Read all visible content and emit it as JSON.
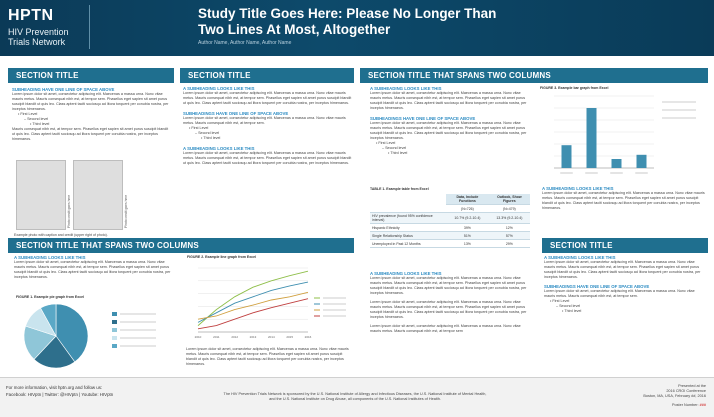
{
  "header": {
    "logo_main": "HPTN",
    "logo_sub_1": "HIV Prevention",
    "logo_sub_2": "Trials Network",
    "title_line_1": "Study Title Goes Here: Please No Longer Than",
    "title_line_2": "Two Lines At Most, Altogether",
    "authors": "Author Name, Author Name, Author Name"
  },
  "lorem": {
    "short": "Lorem ipsum dolor sit amet, consectetur adipiscing elit. Maecenas a massa urna. Nunc vitae mauris metus. Mauris consequat nibh est, at tempor sem. Phasellus eget sapien sit amet purus suscipit blandit ut quis leo. Class aptent taciti sociosqu ad litora torquent per conubia nostra, per inceptos himenaeos.",
    "tail": "Mauris consequat nibh est, at tempor sem. Phasellus eget sapien sit amet purus suscipit blandit ut quis leo. Class aptent taciti sociosqu ad litora torquent per conubia nostra, per inceptos himenaeos.",
    "mid": "Lorem ipsum dolor sit amet, consectetur adipiscing elit. Maecenas a massa urna. Nunc vitae mauris metus. Mauris consequat nibh est, at tempor sem.",
    "long_b": "Lorem ipsum dolor sit amet, consectetur adipiscing elit. Maecenas a massa urna. Nunc vitae mauris metus. Mauris consequat nibh est, at tempor sem. Phasellus eget sapien sit amet purus suscipit blandit ut quis leo. Class aptent taciti sociosqu ad litora torquent per conubia nostra, per inceptos himenaeos.",
    "final": "Lorem ipsum dolor sit amet, consectetur adipiscing elit. Maecenas a massa urna. Nunc vitae mauris metus. Mauris consequat nibh est, at tempor sem"
  },
  "bullets": {
    "l1": "First Level",
    "l2": "Second level",
    "l3": "Third level"
  },
  "sections": {
    "s1_title": "SECTION TITLE",
    "s1_sub": "SUBHEADING HAVE ONE LINE OF SPACE ABOVE",
    "photo_caption": "Example photo with caption and credit (upper right of photo).",
    "photo_credit": "Photo credit goes here",
    "s2_title": "SECTION TITLE",
    "s2_sub1": "A SUBHEADING LOOKS LIKE THIS",
    "s2_sub2": "SUBHEADINGS HAVE ONE LINE OF SPACE ABOVE",
    "s2_sub3": "A SUBHEADING LOOKS LIKE THIS",
    "s3_title": "SECTION TITLE THAT SPANS TWO COLUMNS",
    "s3_sub1": "A SUBHEADING LOOKS LIKE THIS",
    "s3_sub2": "SUBHEADINGS HAVE ONE LINE OF SPACE ABOVE",
    "s3_sub3": "A SUBHEADING LOOKS LIKE THIS",
    "s3_sub4": "A SUBHEADING LOOKS LIKE THIS",
    "s4_title": "SECTION TITLE THAT SPANS TWO COLUMNS",
    "s4_sub1": "A SUBHEADING LOOKS LIKE THIS",
    "s5_title": "SECTION TITLE",
    "s5_sub1": "A SUBHEADING LOOKS LIKE THIS",
    "s5_sub2": "SUBHEADINGS HAVE ONE LINE OF SPACE ABOVE"
  },
  "table": {
    "title": "TABLE 1. Example table from Excel",
    "col1": "Data, Include Functions",
    "col1_sub": "(N=726)",
    "col2": "Outlook, Show Figures",
    "col2_sub": "(N=479)",
    "rows": [
      {
        "label": "HIV prevalence (found 95% confidence interval)",
        "a": "10.7% (9.2-10.4)",
        "b": "13.3% (9.2-10.4)"
      },
      {
        "label": "Hispanic Ethnicity",
        "a": "39%",
        "b": "12%"
      },
      {
        "label": "Single Relationship Status",
        "a": "51%",
        "b": "57%"
      },
      {
        "label": "Unemployed in Past 12 Months",
        "a": "13%",
        "b": "29%"
      }
    ]
  },
  "figures": {
    "fig1_title": "FIGURE 1. Example pie graph from Excel",
    "fig2_title": "FIGURE 2. Example line graph from Excel",
    "fig3_title": "FIGURE 3. Example bar graph from Excel"
  },
  "chart_data": [
    {
      "type": "pie",
      "title": "FIGURE 1. Example pie graph from Excel",
      "categories": [
        "A",
        "B",
        "C",
        "D",
        "E"
      ],
      "values": [
        40,
        22,
        18,
        12,
        8
      ],
      "legend": "right",
      "colors": [
        "#3f8fb0",
        "#2e6f8c",
        "#8fc6d8",
        "#c9e4ee",
        "#5aa8c6"
      ]
    },
    {
      "type": "line",
      "title": "FIGURE 2. Example line graph from Excel",
      "categories": [
        "2010",
        "2011",
        "2012",
        "2013",
        "2014",
        "2015",
        "2016"
      ],
      "series": [
        {
          "values": [
            10,
            35,
            55,
            70,
            80,
            88,
            95
          ],
          "color": "#8fbf4a"
        },
        {
          "values": [
            15,
            30,
            45,
            55,
            65,
            72,
            78
          ],
          "color": "#3f8fb0"
        },
        {
          "values": [
            20,
            25,
            35,
            42,
            50,
            55,
            62
          ],
          "color": "#d0a040"
        },
        {
          "values": [
            5,
            10,
            20,
            30,
            38,
            45,
            52
          ],
          "color": "#c04040"
        }
      ],
      "ylim": [
        0,
        100
      ],
      "grid": true,
      "legend": "right"
    },
    {
      "type": "bar",
      "title": "FIGURE 3. Example bar graph from Excel",
      "categories": [
        "A",
        "B",
        "C",
        "D"
      ],
      "values": [
        38,
        100,
        15,
        22
      ],
      "ylim": [
        0,
        120
      ],
      "color": "#3f8fb0",
      "grid": true,
      "legend": "right"
    }
  ],
  "footer": {
    "more_info": "For more information, visit hptn.org and follow us:",
    "social": "Facebook: HIVptn | Twitter: @HIVptn | Youtube: HIVptn",
    "sponsor_1": "The HIV Prevention Trials Network is sponsored by the U.S. National Institute of Allergy and Infectious Diseases, the U.S. National Institute of Mental Health,",
    "sponsor_2": "and the U.S. National Institute on Drug Abuse, all components of the U.S. National Institutes of Health.",
    "presented_1": "Presented at the",
    "presented_2": "2016 CROI Conference",
    "presented_3": "Boston, MA, USA, February ##, 2016",
    "poster_number_label": "Poster Number:",
    "poster_number": "###"
  }
}
